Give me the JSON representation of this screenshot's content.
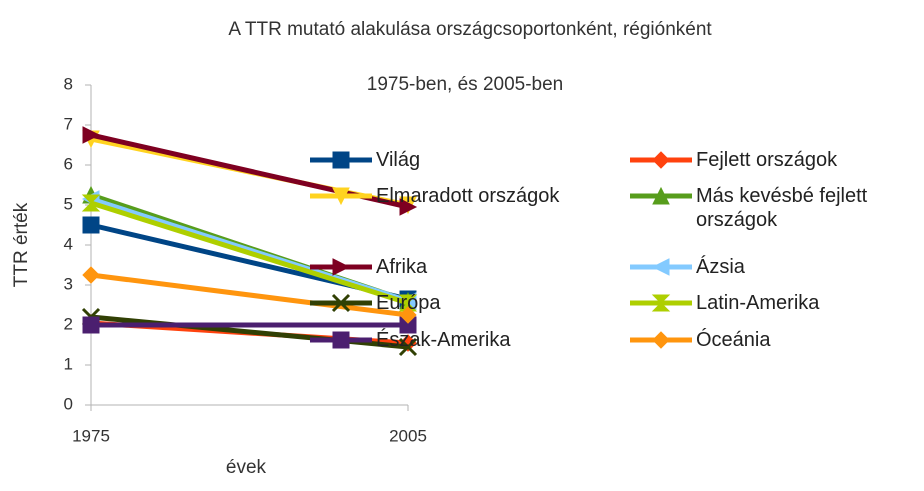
{
  "chart_data": {
    "type": "line",
    "title": "A TTR mutató alakulása országcsoportonként, régiónként",
    "subtitle": "1975-ben, és 2005-ben",
    "y_label": "TTR érték",
    "x_label": "évek",
    "categories": [
      "1975",
      "2005"
    ],
    "ylim": [
      0,
      8
    ],
    "yticks": [
      0,
      1,
      2,
      3,
      4,
      5,
      6,
      7,
      8
    ],
    "grid": false,
    "legend": "right",
    "series": [
      {
        "name": "Világ",
        "color": "#004586",
        "marker": "square",
        "values": [
          4.5,
          2.65
        ]
      },
      {
        "name": "Fejlett országok",
        "color": "#ff420e",
        "marker": "diamond",
        "values": [
          2.05,
          1.55
        ]
      },
      {
        "name": "Elmaradott országok",
        "color": "#ffd320",
        "marker": "triangle-down",
        "values": [
          6.65,
          5.0
        ]
      },
      {
        "name": "Más kevésbé fejlett országok",
        "color": "#579d1c",
        "marker": "triangle",
        "values": [
          5.25,
          2.6
        ]
      },
      {
        "name": "Afrika",
        "color": "#7e0021",
        "marker": "arrow-right",
        "values": [
          6.75,
          4.95
        ]
      },
      {
        "name": "Ázsia",
        "color": "#83caff",
        "marker": "arrow-left",
        "values": [
          5.15,
          2.6
        ]
      },
      {
        "name": "Európa",
        "color": "#314004",
        "marker": "x",
        "values": [
          2.2,
          1.45
        ]
      },
      {
        "name": "Latin-Amerika",
        "color": "#aecf00",
        "marker": "hourglass",
        "values": [
          5.05,
          2.55
        ]
      },
      {
        "name": "Észak-Amerika",
        "color": "#4b1f6f",
        "marker": "square",
        "values": [
          2.0,
          2.0
        ]
      },
      {
        "name": "Óceánia",
        "color": "#ff950e",
        "marker": "diamond",
        "values": [
          3.25,
          2.25
        ]
      }
    ]
  }
}
